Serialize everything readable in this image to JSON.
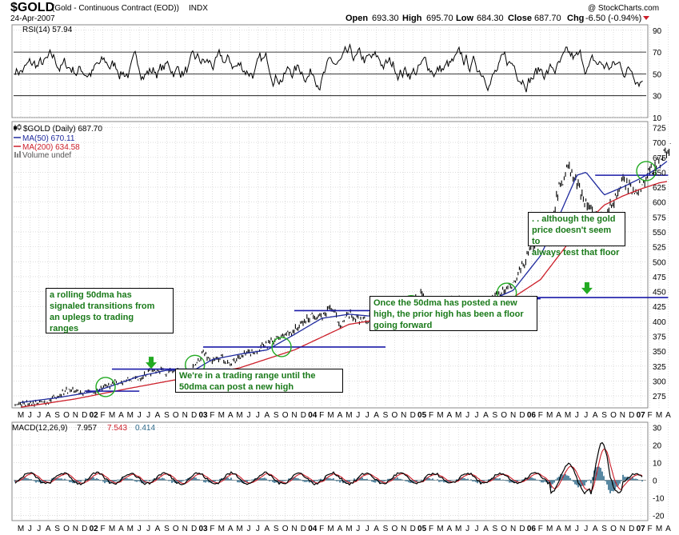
{
  "header": {
    "ticker": "$GOLD",
    "title": "(Gold - Continuous Contract (EOD))",
    "exchange": "INDX",
    "date": "24-Apr-2007",
    "copyright": "@ StockCharts.com",
    "open_label": "Open",
    "open": "693.30",
    "high_label": "High",
    "high": "695.70",
    "low_label": "Low",
    "low": "684.30",
    "close_label": "Close",
    "close": "687.70",
    "chg_label": "Chg",
    "chg": "-6.50 (-0.94%)"
  },
  "legend": {
    "rsi": "RSI(14) 57.94",
    "price": "$GOLD (Daily) 687.70",
    "ma50": "MA(50) 670.11",
    "ma200": "MA(200) 634.58",
    "volume": "Volume undef",
    "macd_prefix": "MACD(12,26,9)",
    "macd_v1": "7.957",
    "macd_v2": "7.543",
    "macd_v3": "0.414"
  },
  "annotations": {
    "a1": "a rolling 50dma has\nsignaled  transitions from\nan uplegs to  trading\nranges",
    "a2": "We're in a trading range until the\n50dma can post a new high",
    "a3": "Once the 50dma has posted a new\nhigh, the prior high has been a floor\ngoing forward",
    "a4": ". . although the gold\nprice doesn't seem to\nalways test that floor"
  },
  "colors": {
    "price": "#000000",
    "ma50": "#1f2a9e",
    "ma200": "#cc1f2a",
    "support_line": "#1a1aa8",
    "annotation_text": "#1a7a1a",
    "circle": "#22aa22",
    "arrow": "#22aa22",
    "macd_hist": "#2e6a8a",
    "grid": "#c8c8c8"
  },
  "icons": {
    "chg_arrow": "red-down-triangle-icon",
    "candles": "candlestick-icon"
  },
  "chart_data": {
    "type": "line",
    "x_axis_labels": [
      "M",
      "J",
      "J",
      "A",
      "S",
      "O",
      "N",
      "D",
      "02",
      "F",
      "M",
      "A",
      "M",
      "J",
      "J",
      "A",
      "S",
      "O",
      "N",
      "D",
      "03",
      "F",
      "M",
      "A",
      "M",
      "J",
      "J",
      "A",
      "S",
      "O",
      "N",
      "D",
      "04",
      "F",
      "M",
      "A",
      "M",
      "J",
      "J",
      "A",
      "S",
      "O",
      "N",
      "D",
      "05",
      "F",
      "M",
      "A",
      "M",
      "J",
      "J",
      "A",
      "S",
      "O",
      "N",
      "D",
      "06",
      "F",
      "M",
      "A",
      "M",
      "J",
      "J",
      "A",
      "S",
      "O",
      "N",
      "D",
      "07",
      "F",
      "M",
      "A"
    ],
    "panels": [
      {
        "name": "RSI",
        "y_ticks": [
          10,
          30,
          50,
          70,
          90
        ],
        "ylim": [
          10,
          95
        ],
        "reference_lines": [
          30,
          50,
          70
        ]
      },
      {
        "name": "Price",
        "y_ticks": [
          275,
          300,
          325,
          350,
          375,
          400,
          425,
          450,
          475,
          500,
          525,
          550,
          575,
          600,
          625,
          650,
          675,
          700,
          725
        ],
        "ylim": [
          255,
          735
        ],
        "series": [
          {
            "name": "$GOLD (Daily)",
            "x_month_index": [
              0,
              3,
              5,
              8,
              10,
              12,
              13,
              14,
              15,
              16,
              17,
              18,
              19,
              20,
              21,
              22,
              23,
              24,
              25,
              26,
              28,
              30,
              32,
              33,
              34,
              35,
              36,
              38,
              39,
              40,
              42,
              44,
              45,
              46,
              48,
              50,
              52,
              54,
              56,
              57,
              58,
              59,
              60,
              62,
              63,
              64,
              65,
              66,
              67,
              68,
              69,
              71
            ],
            "values": [
              262,
              265,
              285,
              280,
              295,
              302,
              305,
              315,
              320,
              314,
              318,
              312,
              322,
              348,
              332,
              340,
              328,
              342,
              346,
              352,
              370,
              385,
              412,
              405,
              425,
              395,
              410,
              400,
              418,
              412,
              428,
              445,
              430,
              428,
              435,
              430,
              440,
              460,
              520,
              555,
              560,
              620,
              660,
              600,
              575,
              580,
              600,
              635,
              620,
              625,
              650,
              688
            ]
          },
          {
            "name": "MA(50)",
            "x_month_index": [
              0,
              4,
              8,
              10,
              13,
              16,
              19,
              21,
              24,
              27,
              30,
              33,
              36,
              39,
              42,
              45,
              48,
              51,
              54,
              57,
              59,
              61,
              62,
              64,
              66,
              68,
              70,
              71
            ],
            "values": [
              264,
              272,
              282,
              292,
              308,
              318,
              318,
              336,
              345,
              352,
              378,
              405,
              412,
              408,
              418,
              438,
              432,
              432,
              452,
              510,
              575,
              645,
              650,
              612,
              625,
              640,
              658,
              670
            ]
          },
          {
            "name": "MA(200)",
            "x_month_index": [
              0,
              6,
              12,
              18,
              24,
              30,
              36,
              42,
              48,
              54,
              57,
              60,
              62,
              64,
              66,
              68,
              70,
              71
            ],
            "values": [
              256,
              270,
              288,
              305,
              322,
              352,
              395,
              410,
              420,
              440,
              470,
              530,
              565,
              595,
              610,
              622,
              632,
              635
            ]
          }
        ],
        "horizontal_lines": [
          {
            "value": 283,
            "x_start": 7,
            "x_end": 13
          },
          {
            "value": 320,
            "x_start": 10,
            "x_end": 23
          },
          {
            "value": 357,
            "x_start": 20,
            "x_end": 40
          },
          {
            "value": 418,
            "x_start": 30,
            "x_end": 47
          },
          {
            "value": 438,
            "x_start": 43,
            "x_end": 57
          },
          {
            "value": 415,
            "x_start": 43,
            "x_end": 50
          },
          {
            "value": 440,
            "x_start": 52,
            "x_end": 71
          },
          {
            "value": 645,
            "x_start": 63,
            "x_end": 71
          }
        ],
        "circles": [
          {
            "x": 9.3,
            "y": 290
          },
          {
            "x": 19.1,
            "y": 327
          },
          {
            "x": 28.6,
            "y": 357
          },
          {
            "x": 42.8,
            "y": 427
          },
          {
            "x": 53.3,
            "y": 448
          },
          {
            "x": 68.6,
            "y": 652
          }
        ],
        "arrows": [
          {
            "x": 14.3,
            "y": 330
          },
          {
            "x": 19.7,
            "y": 305
          },
          {
            "x": 46.5,
            "y": 405
          },
          {
            "x": 62.1,
            "y": 455
          }
        ]
      },
      {
        "name": "MACD",
        "y_ticks": [
          -20,
          -10,
          0,
          10,
          20,
          30
        ],
        "ylim": [
          -23,
          33
        ]
      }
    ]
  }
}
